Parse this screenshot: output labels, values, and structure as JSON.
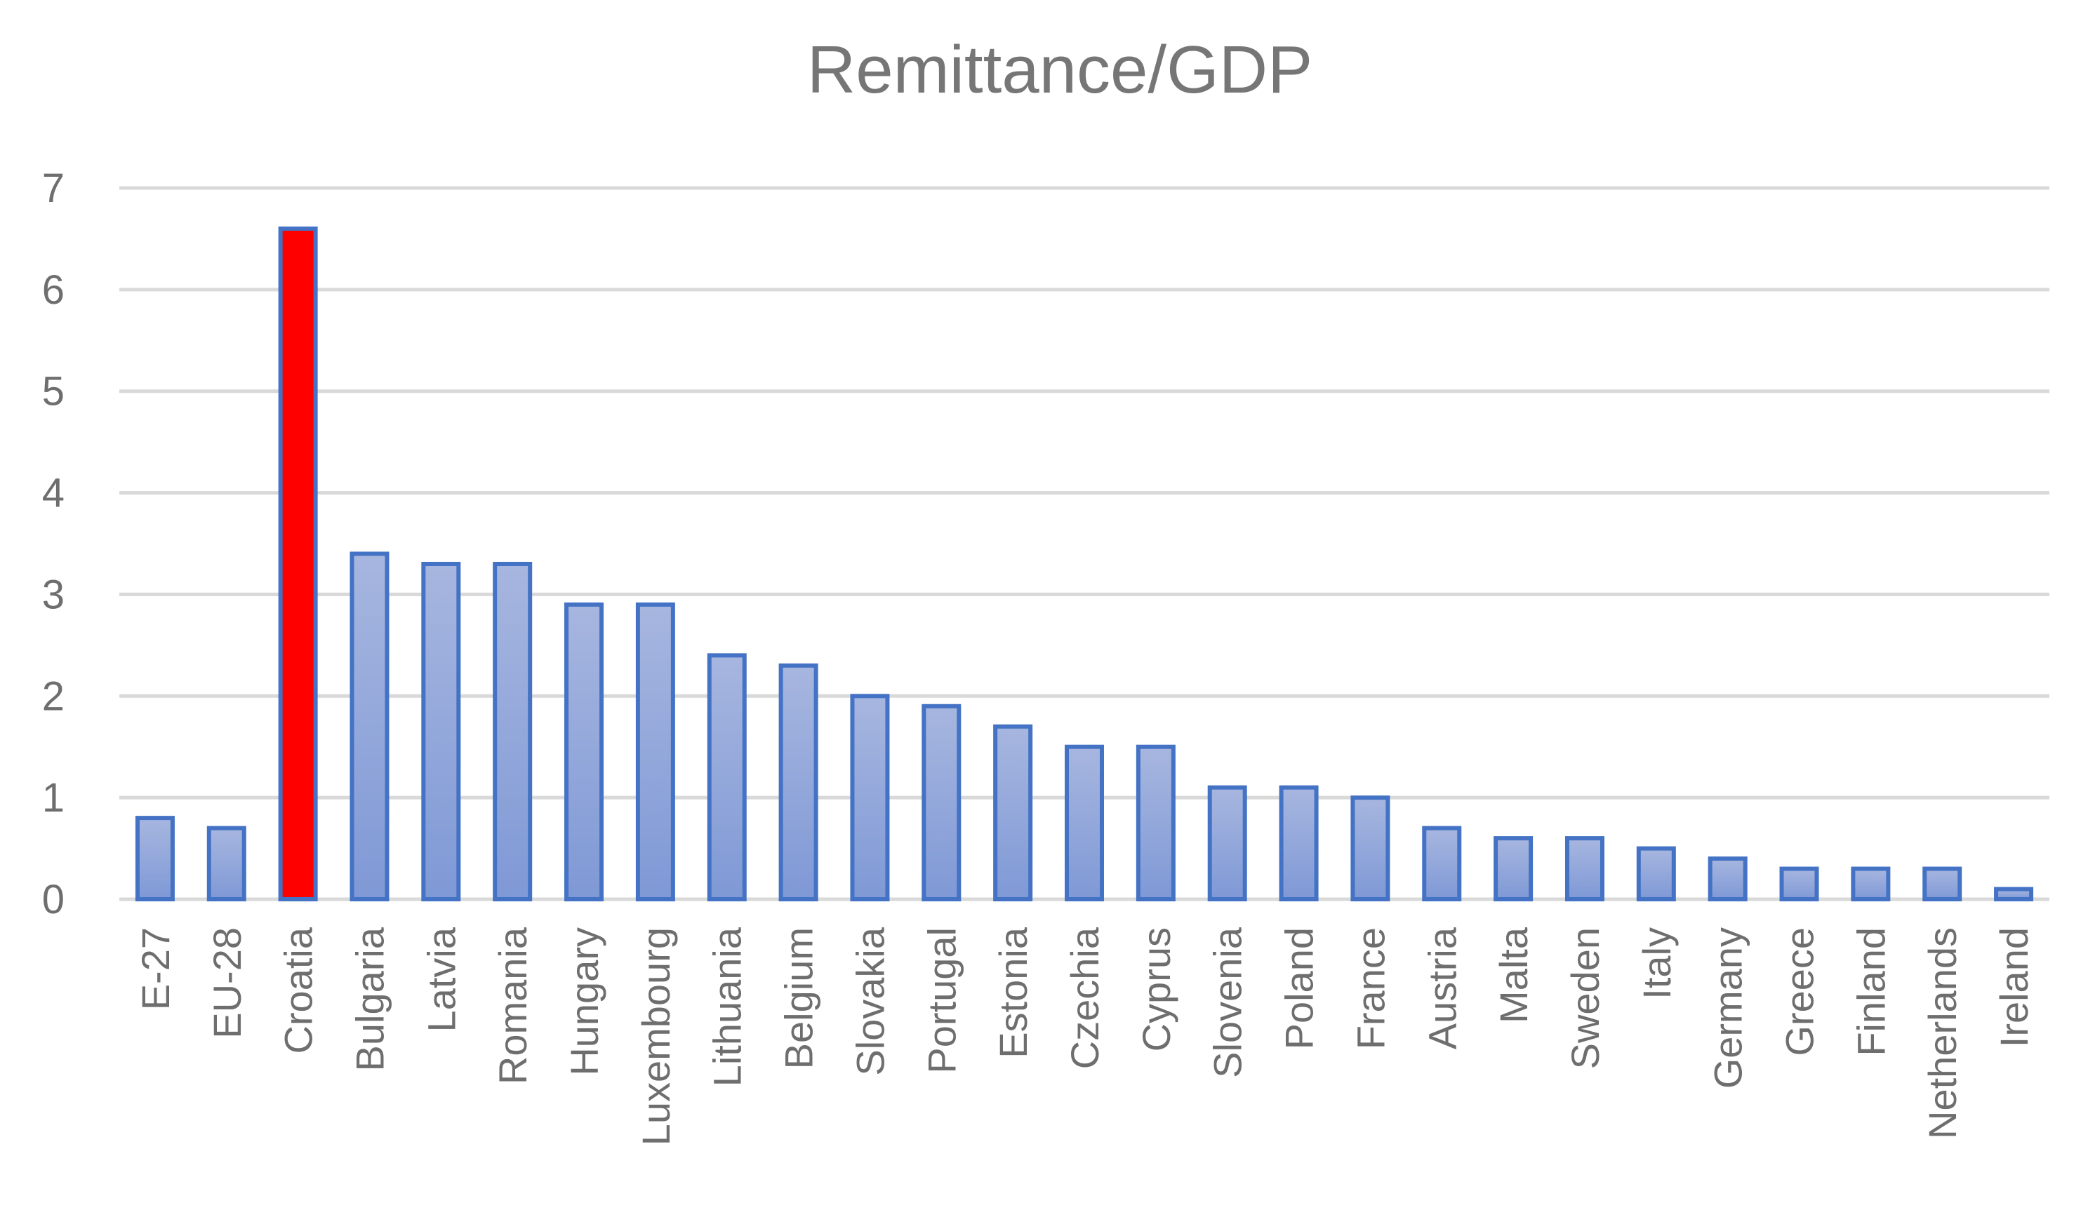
{
  "chart_data": {
    "type": "bar",
    "title": "Remittance/GDP",
    "xlabel": "",
    "ylabel": "",
    "ylim": [
      0,
      7
    ],
    "yticks": [
      "0",
      "1",
      "2",
      "3",
      "4",
      "5",
      "6",
      "7"
    ],
    "grid": true,
    "legend": "none",
    "categories": [
      "E-27",
      "EU-28",
      "Croatia",
      "Bulgaria",
      "Latvia",
      "Romania",
      "Hungary",
      "Luxembourg",
      "Lithuania",
      "Belgium",
      "Slovakia",
      "Portugal",
      "Estonia",
      "Czechia",
      "Cyprus",
      "Slovenia",
      "Poland",
      "France",
      "Austria",
      "Malta",
      "Sweden",
      "Italy",
      "Germany",
      "Greece",
      "Finland",
      "Netherlands",
      "Ireland"
    ],
    "values": [
      0.8,
      0.7,
      6.6,
      3.4,
      3.3,
      3.3,
      2.9,
      2.9,
      2.4,
      2.3,
      2.0,
      1.9,
      1.7,
      1.5,
      1.5,
      1.1,
      1.1,
      1.0,
      0.7,
      0.6,
      0.6,
      0.5,
      0.4,
      0.3,
      0.3,
      0.3,
      0.1
    ],
    "highlight_category": "Croatia",
    "colors": {
      "bar_fill_top": "#a7b6df",
      "bar_fill_bottom": "#7f99d6",
      "bar_stroke": "#4472c4",
      "highlight_fill": "#ff0000",
      "grid": "#d9d9d9",
      "text": "#6e6e6e"
    }
  }
}
